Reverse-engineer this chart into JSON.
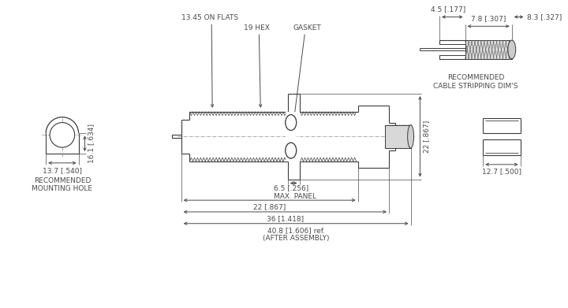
{
  "bg_color": "#ffffff",
  "line_color": "#3a3a3a",
  "dim_color": "#4a4a4a",
  "annotations": {
    "hex_label": "19 HEX",
    "gasket_label": "GASKET",
    "on_flats_label": "13.45 ON FLATS",
    "dim_22_label": "22 [.867]",
    "dim_16_label": "16.1 [.634]",
    "dim_13_label": "13.7 [.540]",
    "dim_6_label": "6.5 [.256]\nMAX. PANEL",
    "dim_22b_label": "22 [.867]",
    "dim_36_label": "36 [1.418]",
    "dim_40_label": "40.8 [1.606] ref.\n(AFTER ASSEMBLY)",
    "dim_12_label": "12.7 [.500]",
    "dim_7_label": "7.8 [.307]",
    "dim_4_label": "4.5 [.177]",
    "dim_8_label": "8.3 [.327]",
    "rec_mount_label": "RECOMMENDED\nMOUNTING HOLE",
    "rec_cable_label": "RECOMMENDED\nCABLE STRIPPING DIM'S"
  }
}
